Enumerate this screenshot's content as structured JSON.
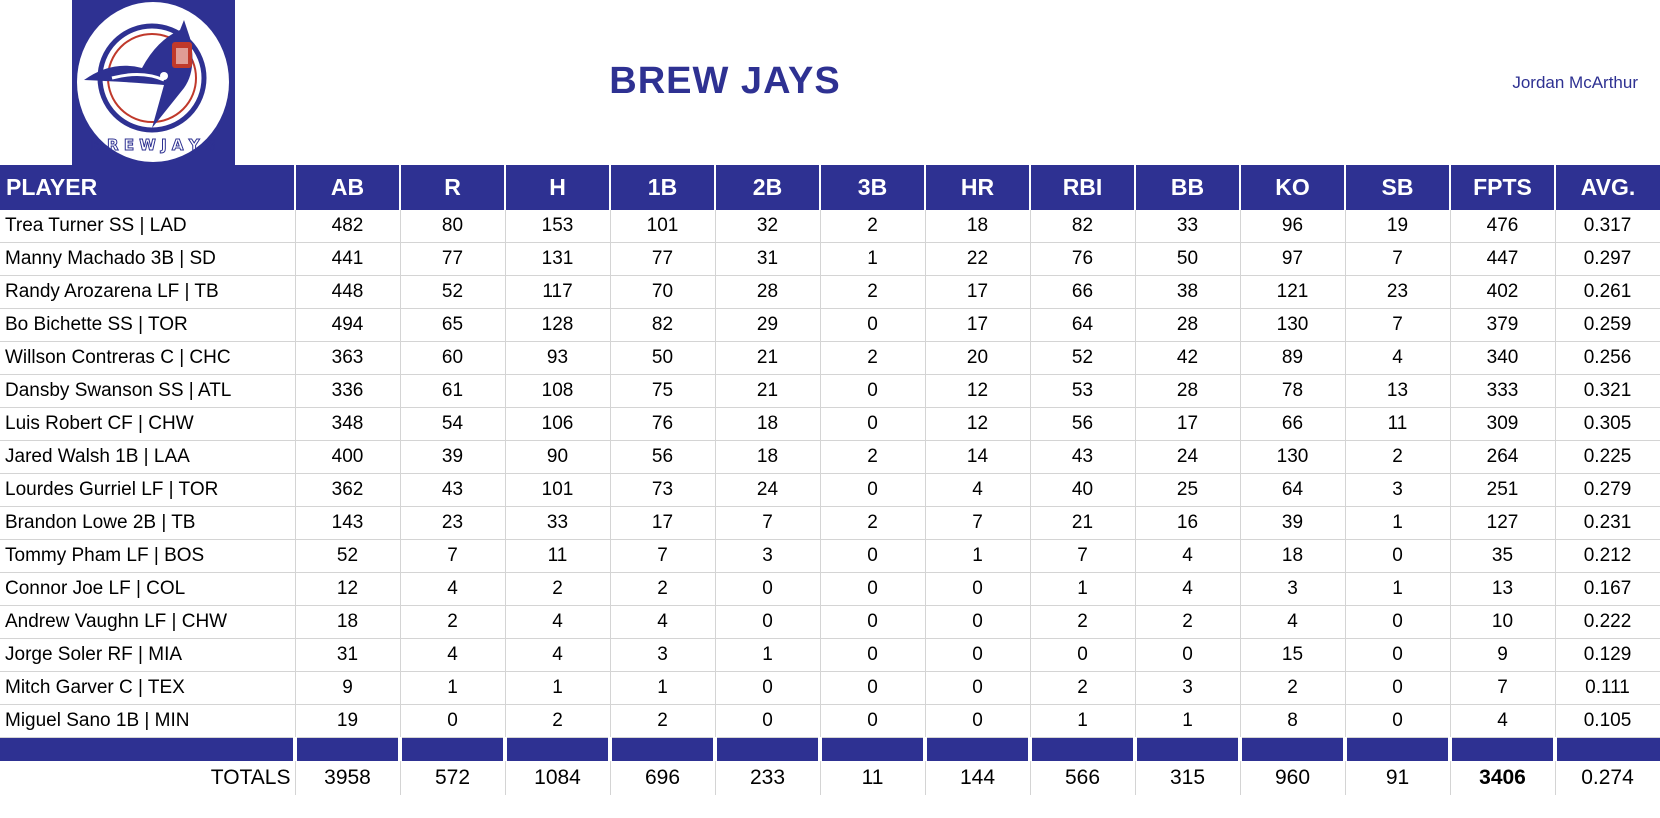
{
  "team_name": "BREW JAYS",
  "owner": "Jordan McArthur",
  "logo_text": "BREW JAYS",
  "colors": {
    "brand": "#2e3192",
    "accent_red": "#c0392b"
  },
  "columns": [
    "PLAYER",
    "AB",
    "R",
    "H",
    "1B",
    "2B",
    "3B",
    "HR",
    "RBI",
    "BB",
    "KO",
    "SB",
    "FPTS",
    "AVG."
  ],
  "rows": [
    [
      "Trea Turner SS | LAD",
      "482",
      "80",
      "153",
      "101",
      "32",
      "2",
      "18",
      "82",
      "33",
      "96",
      "19",
      "476",
      "0.317"
    ],
    [
      "Manny Machado 3B | SD",
      "441",
      "77",
      "131",
      "77",
      "31",
      "1",
      "22",
      "76",
      "50",
      "97",
      "7",
      "447",
      "0.297"
    ],
    [
      "Randy Arozarena LF | TB",
      "448",
      "52",
      "117",
      "70",
      "28",
      "2",
      "17",
      "66",
      "38",
      "121",
      "23",
      "402",
      "0.261"
    ],
    [
      "Bo Bichette SS | TOR",
      "494",
      "65",
      "128",
      "82",
      "29",
      "0",
      "17",
      "64",
      "28",
      "130",
      "7",
      "379",
      "0.259"
    ],
    [
      "Willson Contreras C | CHC",
      "363",
      "60",
      "93",
      "50",
      "21",
      "2",
      "20",
      "52",
      "42",
      "89",
      "4",
      "340",
      "0.256"
    ],
    [
      "Dansby Swanson SS | ATL",
      "336",
      "61",
      "108",
      "75",
      "21",
      "0",
      "12",
      "53",
      "28",
      "78",
      "13",
      "333",
      "0.321"
    ],
    [
      "Luis Robert CF | CHW",
      "348",
      "54",
      "106",
      "76",
      "18",
      "0",
      "12",
      "56",
      "17",
      "66",
      "11",
      "309",
      "0.305"
    ],
    [
      "Jared Walsh 1B | LAA",
      "400",
      "39",
      "90",
      "56",
      "18",
      "2",
      "14",
      "43",
      "24",
      "130",
      "2",
      "264",
      "0.225"
    ],
    [
      "Lourdes Gurriel LF | TOR",
      "362",
      "43",
      "101",
      "73",
      "24",
      "0",
      "4",
      "40",
      "25",
      "64",
      "3",
      "251",
      "0.279"
    ],
    [
      "Brandon Lowe 2B | TB",
      "143",
      "23",
      "33",
      "17",
      "7",
      "2",
      "7",
      "21",
      "16",
      "39",
      "1",
      "127",
      "0.231"
    ],
    [
      "Tommy Pham LF | BOS",
      "52",
      "7",
      "11",
      "7",
      "3",
      "0",
      "1",
      "7",
      "4",
      "18",
      "0",
      "35",
      "0.212"
    ],
    [
      "Connor Joe LF | COL",
      "12",
      "4",
      "2",
      "2",
      "0",
      "0",
      "0",
      "1",
      "4",
      "3",
      "1",
      "13",
      "0.167"
    ],
    [
      "Andrew Vaughn LF | CHW",
      "18",
      "2",
      "4",
      "4",
      "0",
      "0",
      "0",
      "2",
      "2",
      "4",
      "0",
      "10",
      "0.222"
    ],
    [
      "Jorge Soler RF | MIA",
      "31",
      "4",
      "4",
      "3",
      "1",
      "0",
      "0",
      "0",
      "0",
      "15",
      "0",
      "9",
      "0.129"
    ],
    [
      "Mitch Garver C | TEX",
      "9",
      "1",
      "1",
      "1",
      "0",
      "0",
      "0",
      "2",
      "3",
      "2",
      "0",
      "7",
      "0.111"
    ],
    [
      "Miguel Sano 1B | MIN",
      "19",
      "0",
      "2",
      "2",
      "0",
      "0",
      "0",
      "1",
      "1",
      "8",
      "0",
      "4",
      "0.105"
    ]
  ],
  "totals": [
    "TOTALS",
    "3958",
    "572",
    "1084",
    "696",
    "233",
    "11",
    "144",
    "566",
    "315",
    "960",
    "91",
    "3406",
    "0.274"
  ]
}
